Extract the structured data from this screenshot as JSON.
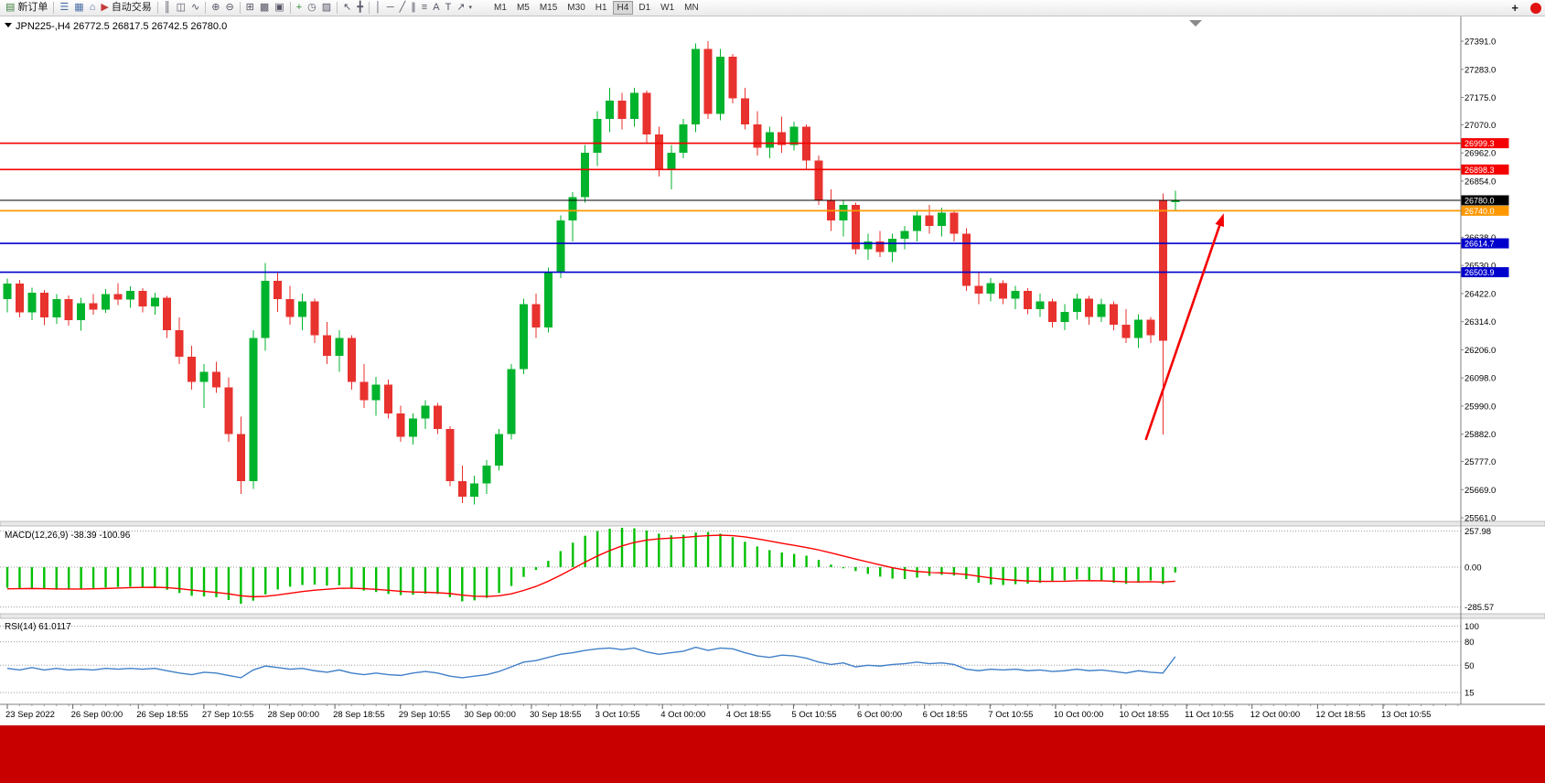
{
  "toolbar": {
    "groups": [
      {
        "items": [
          {
            "name": "new-order-button",
            "icon": "new-order-icon",
            "glyph": "▤",
            "glyph_color": "#3b7d3b",
            "label": "新订单"
          }
        ]
      },
      {
        "items": [
          {
            "name": "market-watch-button",
            "icon": "market-watch-icon",
            "glyph": "☰",
            "glyph_color": "#4a6fa5"
          },
          {
            "name": "data-window-button",
            "icon": "data-window-icon",
            "glyph": "▦",
            "glyph_color": "#4a6fa5"
          },
          {
            "name": "navigator-button",
            "icon": "navigator-icon",
            "glyph": "⌂",
            "glyph_color": "#4a6fa5"
          },
          {
            "name": "autotrading-button",
            "icon": "autotrading-icon",
            "glyph": "▶",
            "glyph_color": "#c43c3c",
            "label": "自动交易"
          }
        ]
      },
      {
        "items": [
          {
            "name": "bar-chart-button",
            "icon": "bar-chart-icon",
            "glyph": "║"
          },
          {
            "name": "candlestick-button",
            "icon": "candlestick-icon",
            "glyph": "◫"
          },
          {
            "name": "line-chart-button",
            "icon": "line-chart-icon",
            "glyph": "∿"
          }
        ]
      },
      {
        "items": [
          {
            "name": "zoom-in-button",
            "icon": "zoom-in-icon",
            "glyph": "⊕"
          },
          {
            "name": "zoom-out-button",
            "icon": "zoom-out-icon",
            "glyph": "⊖"
          }
        ]
      },
      {
        "items": [
          {
            "name": "tile-windows-button",
            "icon": "tile-windows-icon",
            "glyph": "⊞"
          },
          {
            "name": "cascade-windows-button",
            "icon": "cascade-windows-icon",
            "glyph": "▩"
          },
          {
            "name": "arrange-windows-button",
            "icon": "arrange-windows-icon",
            "glyph": "▣"
          }
        ]
      },
      {
        "items": [
          {
            "name": "indicators-button",
            "icon": "indicators-icon",
            "glyph": "+",
            "glyph_color": "#2e8b2e"
          },
          {
            "name": "periods-button",
            "icon": "clock-icon",
            "glyph": "◷"
          },
          {
            "name": "templates-button",
            "icon": "templates-icon",
            "glyph": "▨"
          }
        ]
      },
      {
        "items": [
          {
            "name": "cursor-button",
            "icon": "cursor-icon",
            "glyph": "↖"
          },
          {
            "name": "crosshair-button",
            "icon": "crosshair-icon",
            "glyph": "╋"
          }
        ]
      },
      {
        "items": [
          {
            "name": "vertical-line-button",
            "icon": "vertical-line-icon",
            "glyph": "│"
          },
          {
            "name": "horizontal-line-button",
            "icon": "horizontal-line-icon",
            "glyph": "─"
          },
          {
            "name": "trendline-button",
            "icon": "trendline-icon",
            "glyph": "╱"
          },
          {
            "name": "channel-button",
            "icon": "channel-icon",
            "glyph": "∥"
          },
          {
            "name": "fibonacci-button",
            "icon": "fibonacci-icon",
            "glyph": "≡"
          },
          {
            "name": "text-button",
            "icon": "text-icon",
            "glyph": "A"
          },
          {
            "name": "label-button",
            "icon": "label-icon",
            "glyph": "T"
          },
          {
            "name": "arrows-button",
            "icon": "arrows-icon",
            "glyph": "↗",
            "caret": true
          }
        ]
      }
    ],
    "timeframes": {
      "items": [
        "M1",
        "M5",
        "M15",
        "M30",
        "H1",
        "H4",
        "D1",
        "W1",
        "MN"
      ],
      "active": "H4"
    },
    "right": {
      "plus_label": "+",
      "badge_color": "#e01212"
    }
  },
  "chart": {
    "symbol_title": "JPN225-,H4 26772.5 26817.5 26742.5 26780.0",
    "macd_label": "MACD(12,26,9) -38.39 -100.96",
    "rsi_label": "RSI(14) 61.0117"
  },
  "chart_data": {
    "type": "candlestick",
    "symbol": "JPN225-",
    "timeframe": "H4",
    "current_ohlc": {
      "open": 26772.5,
      "high": 26817.5,
      "low": 26742.5,
      "close": 26780.0
    },
    "colors": {
      "up": "#00b32c",
      "down": "#e8322e",
      "macd_hist": "#00c000",
      "macd_signal": "#ff0000",
      "rsi": "#4080c8",
      "bg": "#ffffff"
    },
    "main_pane": {
      "ylim": [
        25547,
        27486
      ],
      "ticks": [
        {
          "v": 27391,
          "label": "27391.0"
        },
        {
          "v": 27283,
          "label": "27283.0"
        },
        {
          "v": 27175,
          "label": "27175.0"
        },
        {
          "v": 27070,
          "label": "27070.0"
        },
        {
          "v": 26962,
          "label": "26962.0"
        },
        {
          "v": 26854,
          "label": "26854.0"
        },
        {
          "v": 26746,
          "label": "26746.0"
        },
        {
          "v": 26638,
          "label": "26638.0"
        },
        {
          "v": 26530,
          "label": "26530.0"
        },
        {
          "v": 26422,
          "label": "26422.0"
        },
        {
          "v": 26314,
          "label": "26314.0"
        },
        {
          "v": 26206,
          "label": "26206.0"
        },
        {
          "v": 26098,
          "label": "26098.0"
        },
        {
          "v": 25990,
          "label": "25990.0"
        },
        {
          "v": 25882,
          "label": "25882.0"
        },
        {
          "v": 25777,
          "label": "25777.0"
        },
        {
          "v": 25669,
          "label": "25669.0"
        },
        {
          "v": 25561,
          "label": "25561.0"
        }
      ],
      "levels": [
        {
          "v": 26999.3,
          "label": "26999.3",
          "color": "#f40000",
          "width": 1.6,
          "name": "resistance-line-1"
        },
        {
          "v": 26898.3,
          "label": "26898.3",
          "color": "#f40000",
          "width": 1.6,
          "name": "resistance-line-2"
        },
        {
          "v": 26780.0,
          "label": "26780.0",
          "color": "#000000",
          "width": 1.0,
          "name": "bid-price-line"
        },
        {
          "v": 26740.0,
          "label": "26740.0",
          "color": "#ff9800",
          "width": 1.8,
          "name": "orange-level-line"
        },
        {
          "v": 26614.7,
          "label": "26614.7",
          "color": "#0000cc",
          "width": 1.6,
          "name": "support-line-1"
        },
        {
          "v": 26503.9,
          "label": "26503.9",
          "color": "#0000cc",
          "width": 1.6,
          "name": "support-line-2"
        }
      ],
      "annotation_arrow": {
        "color": "#f40000",
        "from": {
          "index": 92.6,
          "price": 25860
        },
        "to": {
          "index": 98.8,
          "price": 26710
        }
      }
    },
    "candles": [
      [
        26400,
        26480,
        26350,
        26460
      ],
      [
        26460,
        26475,
        26330,
        26350
      ],
      [
        26350,
        26445,
        26320,
        26425
      ],
      [
        26425,
        26435,
        26300,
        26330
      ],
      [
        26330,
        26420,
        26305,
        26400
      ],
      [
        26400,
        26415,
        26298,
        26320
      ],
      [
        26320,
        26405,
        26280,
        26385
      ],
      [
        26385,
        26420,
        26340,
        26360
      ],
      [
        26360,
        26440,
        26348,
        26420
      ],
      [
        26420,
        26462,
        26378,
        26398
      ],
      [
        26398,
        26450,
        26368,
        26432
      ],
      [
        26432,
        26442,
        26350,
        26372
      ],
      [
        26372,
        26425,
        26340,
        26405
      ],
      [
        26405,
        26412,
        26252,
        26282
      ],
      [
        26282,
        26330,
        26152,
        26180
      ],
      [
        26180,
        26222,
        26052,
        26082
      ],
      [
        26082,
        26152,
        25982,
        26122
      ],
      [
        26122,
        26160,
        26040,
        26062
      ],
      [
        26062,
        26100,
        25852,
        25882
      ],
      [
        25882,
        25950,
        25652,
        25702
      ],
      [
        25702,
        26282,
        25672,
        26252
      ],
      [
        26252,
        26540,
        26202,
        26470
      ],
      [
        26470,
        26500,
        26352,
        26400
      ],
      [
        26400,
        26452,
        26302,
        26332
      ],
      [
        26332,
        26422,
        26282,
        26392
      ],
      [
        26392,
        26402,
        26232,
        26262
      ],
      [
        26262,
        26312,
        26152,
        26182
      ],
      [
        26182,
        26282,
        26122,
        26252
      ],
      [
        26252,
        26262,
        26052,
        26082
      ],
      [
        26082,
        26152,
        25982,
        26012
      ],
      [
        26012,
        26102,
        25952,
        26072
      ],
      [
        26072,
        26092,
        25942,
        25962
      ],
      [
        25962,
        25992,
        25852,
        25872
      ],
      [
        25872,
        25962,
        25842,
        25942
      ],
      [
        25942,
        26012,
        25902,
        25992
      ],
      [
        25992,
        26002,
        25882,
        25902
      ],
      [
        25902,
        25912,
        25682,
        25702
      ],
      [
        25702,
        25762,
        25618,
        25642
      ],
      [
        25642,
        25722,
        25612,
        25692
      ],
      [
        25692,
        25782,
        25652,
        25762
      ],
      [
        25762,
        25902,
        25742,
        25882
      ],
      [
        25882,
        26152,
        25862,
        26132
      ],
      [
        26132,
        26402,
        26112,
        26382
      ],
      [
        26382,
        26422,
        26252,
        26292
      ],
      [
        26292,
        26522,
        26272,
        26502
      ],
      [
        26502,
        26722,
        26482,
        26702
      ],
      [
        26702,
        26812,
        26622,
        26792
      ],
      [
        26792,
        26992,
        26772,
        26962
      ],
      [
        26962,
        27122,
        26912,
        27092
      ],
      [
        27092,
        27212,
        27042,
        27162
      ],
      [
        27162,
        27192,
        27052,
        27092
      ],
      [
        27092,
        27212,
        27062,
        27192
      ],
      [
        27192,
        27202,
        27002,
        27032
      ],
      [
        27032,
        27062,
        26872,
        26902
      ],
      [
        26902,
        26992,
        26822,
        26962
      ],
      [
        26962,
        27092,
        26942,
        27072
      ],
      [
        27072,
        27382,
        27042,
        27362
      ],
      [
        27362,
        27391,
        27092,
        27112
      ],
      [
        27112,
        27362,
        27088,
        27332
      ],
      [
        27332,
        27342,
        27152,
        27172
      ],
      [
        27172,
        27212,
        27052,
        27072
      ],
      [
        27072,
        27122,
        26952,
        26982
      ],
      [
        26982,
        27062,
        26942,
        27042
      ],
      [
        27042,
        27102,
        26962,
        26992
      ],
      [
        26992,
        27082,
        26972,
        27062
      ],
      [
        27062,
        27072,
        26902,
        26932
      ],
      [
        26932,
        26952,
        26762,
        26782
      ],
      [
        26782,
        26822,
        26662,
        26702
      ],
      [
        26702,
        26782,
        26642,
        26762
      ],
      [
        26762,
        26772,
        26572,
        26592
      ],
      [
        26592,
        26652,
        26552,
        26622
      ],
      [
        26622,
        26662,
        26562,
        26582
      ],
      [
        26582,
        26652,
        26542,
        26632
      ],
      [
        26632,
        26682,
        26592,
        26662
      ],
      [
        26662,
        26742,
        26622,
        26722
      ],
      [
        26722,
        26762,
        26652,
        26682
      ],
      [
        26682,
        26752,
        26642,
        26732
      ],
      [
        26732,
        26742,
        26622,
        26652
      ],
      [
        26652,
        26672,
        26432,
        26452
      ],
      [
        26452,
        26502,
        26382,
        26422
      ],
      [
        26422,
        26482,
        26392,
        26462
      ],
      [
        26462,
        26472,
        26382,
        26402
      ],
      [
        26402,
        26452,
        26362,
        26432
      ],
      [
        26432,
        26442,
        26342,
        26362
      ],
      [
        26362,
        26422,
        26332,
        26392
      ],
      [
        26392,
        26402,
        26292,
        26312
      ],
      [
        26312,
        26382,
        26282,
        26352
      ],
      [
        26352,
        26422,
        26322,
        26402
      ],
      [
        26402,
        26412,
        26302,
        26332
      ],
      [
        26332,
        26402,
        26312,
        26382
      ],
      [
        26382,
        26392,
        26282,
        26302
      ],
      [
        26302,
        26362,
        26232,
        26252
      ],
      [
        26252,
        26342,
        26212,
        26322
      ],
      [
        26322,
        26332,
        26232,
        26262
      ],
      [
        26780,
        26806,
        25880,
        26240
      ],
      [
        26772.5,
        26817.5,
        26742.5,
        26780
      ]
    ],
    "macd_pane": {
      "ylim": [
        -334,
        295
      ],
      "ticks": [
        {
          "v": 257.98,
          "label": "257.98"
        },
        {
          "v": 0,
          "label": "0.00"
        },
        {
          "v": -285.57,
          "label": "-285.57"
        }
      ],
      "main": [
        -148,
        -152,
        -150,
        -158,
        -162,
        -160,
        -155,
        -150,
        -146,
        -142,
        -140,
        -142,
        -148,
        -162,
        -185,
        -205,
        -210,
        -215,
        -235,
        -262,
        -240,
        -195,
        -160,
        -140,
        -128,
        -125,
        -132,
        -130,
        -148,
        -168,
        -178,
        -192,
        -200,
        -198,
        -190,
        -192,
        -215,
        -245,
        -238,
        -220,
        -185,
        -135,
        -70,
        -20,
        45,
        115,
        175,
        225,
        258,
        275,
        282,
        278,
        262,
        240,
        228,
        232,
        248,
        252,
        240,
        215,
        182,
        148,
        122,
        105,
        95,
        82,
        52,
        18,
        -8,
        -28,
        -48,
        -68,
        -82,
        -85,
        -75,
        -62,
        -55,
        -60,
        -85,
        -112,
        -125,
        -128,
        -122,
        -118,
        -112,
        -105,
        -95,
        -88,
        -92,
        -102,
        -112,
        -120,
        -112,
        -95,
        -120,
        -38.39
      ],
      "signal": [
        -155,
        -154,
        -153,
        -154,
        -156,
        -157,
        -157,
        -155,
        -153,
        -150,
        -147,
        -145,
        -144,
        -147,
        -154,
        -164,
        -173,
        -181,
        -191,
        -205,
        -212,
        -209,
        -199,
        -187,
        -175,
        -165,
        -158,
        -152,
        -151,
        -154,
        -159,
        -166,
        -173,
        -178,
        -180,
        -183,
        -189,
        -200,
        -208,
        -210,
        -205,
        -191,
        -167,
        -138,
        -101,
        -58,
        -11,
        36,
        80,
        119,
        152,
        177,
        194,
        203,
        208,
        213,
        220,
        226,
        229,
        226,
        217,
        203,
        187,
        171,
        156,
        141,
        123,
        102,
        80,
        58,
        37,
        16,
        -4,
        -20,
        -31,
        -37,
        -41,
        -45,
        -53,
        -65,
        -77,
        -87,
        -94,
        -99,
        -102,
        -102,
        -101,
        -98,
        -97,
        -98,
        -101,
        -105,
        -106,
        -104,
        -107,
        -100.96
      ]
    },
    "rsi_pane": {
      "ylim": [
        0,
        110
      ],
      "ticks": [
        {
          "v": 100,
          "label": "100"
        },
        {
          "v": 80,
          "label": "80"
        },
        {
          "v": 50,
          "label": "50"
        },
        {
          "v": 15,
          "label": "15"
        }
      ],
      "values": [
        46,
        44,
        47,
        44,
        46,
        44,
        45,
        44,
        46,
        45,
        46,
        45,
        46,
        43,
        40,
        38,
        41,
        40,
        37,
        34,
        44,
        49,
        47,
        45,
        46,
        43,
        41,
        44,
        40,
        38,
        40,
        38,
        37,
        40,
        42,
        40,
        36,
        34,
        36,
        38,
        42,
        48,
        54,
        56,
        60,
        64,
        66,
        69,
        71,
        72,
        70,
        72,
        67,
        64,
        66,
        68,
        73,
        69,
        72,
        71,
        66,
        62,
        60,
        63,
        62,
        59,
        54,
        51,
        53,
        48,
        50,
        49,
        51,
        52,
        54,
        52,
        53,
        51,
        45,
        43,
        45,
        44,
        45,
        43,
        44,
        42,
        43,
        45,
        43,
        44,
        42,
        40,
        43,
        41,
        40,
        61.01
      ]
    },
    "time_labels": [
      "23 Sep 2022",
      "26 Sep 00:00",
      "26 Sep 18:55",
      "27 Sep 10:55",
      "28 Sep 00:00",
      "28 Sep 18:55",
      "29 Sep 10:55",
      "30 Sep 00:00",
      "30 Sep 18:55",
      "3 Oct 10:55",
      "4 Oct 00:00",
      "4 Oct 18:55",
      "5 Oct 10:55",
      "6 Oct 00:00",
      "6 Oct 18:55",
      "7 Oct 10:55",
      "10 Oct 00:00",
      "10 Oct 18:55",
      "11 Oct 10:55",
      "12 Oct 00:00",
      "12 Oct 18:55",
      "13 Oct 10:55"
    ]
  }
}
